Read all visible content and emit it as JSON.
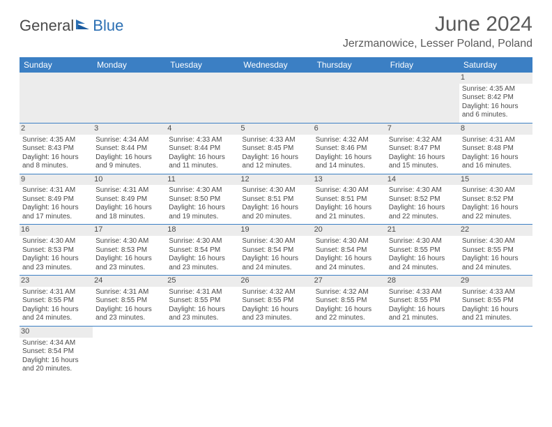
{
  "logo": {
    "text1": "General",
    "text2": "Blue",
    "color1": "#4a4a4a",
    "color2": "#2b6fb3"
  },
  "title": "June 2024",
  "location": "Jerzmanowice, Lesser Poland, Poland",
  "header_bg": "#3b7fc4",
  "daynum_bg": "#ececec",
  "columns": [
    "Sunday",
    "Monday",
    "Tuesday",
    "Wednesday",
    "Thursday",
    "Friday",
    "Saturday"
  ],
  "weeks": [
    [
      null,
      null,
      null,
      null,
      null,
      null,
      {
        "n": "1",
        "sr": "4:35 AM",
        "ss": "8:42 PM",
        "dl": "16 hours and 6 minutes."
      }
    ],
    [
      {
        "n": "2",
        "sr": "4:35 AM",
        "ss": "8:43 PM",
        "dl": "16 hours and 8 minutes."
      },
      {
        "n": "3",
        "sr": "4:34 AM",
        "ss": "8:44 PM",
        "dl": "16 hours and 9 minutes."
      },
      {
        "n": "4",
        "sr": "4:33 AM",
        "ss": "8:44 PM",
        "dl": "16 hours and 11 minutes."
      },
      {
        "n": "5",
        "sr": "4:33 AM",
        "ss": "8:45 PM",
        "dl": "16 hours and 12 minutes."
      },
      {
        "n": "6",
        "sr": "4:32 AM",
        "ss": "8:46 PM",
        "dl": "16 hours and 14 minutes."
      },
      {
        "n": "7",
        "sr": "4:32 AM",
        "ss": "8:47 PM",
        "dl": "16 hours and 15 minutes."
      },
      {
        "n": "8",
        "sr": "4:31 AM",
        "ss": "8:48 PM",
        "dl": "16 hours and 16 minutes."
      }
    ],
    [
      {
        "n": "9",
        "sr": "4:31 AM",
        "ss": "8:49 PM",
        "dl": "16 hours and 17 minutes."
      },
      {
        "n": "10",
        "sr": "4:31 AM",
        "ss": "8:49 PM",
        "dl": "16 hours and 18 minutes."
      },
      {
        "n": "11",
        "sr": "4:30 AM",
        "ss": "8:50 PM",
        "dl": "16 hours and 19 minutes."
      },
      {
        "n": "12",
        "sr": "4:30 AM",
        "ss": "8:51 PM",
        "dl": "16 hours and 20 minutes."
      },
      {
        "n": "13",
        "sr": "4:30 AM",
        "ss": "8:51 PM",
        "dl": "16 hours and 21 minutes."
      },
      {
        "n": "14",
        "sr": "4:30 AM",
        "ss": "8:52 PM",
        "dl": "16 hours and 22 minutes."
      },
      {
        "n": "15",
        "sr": "4:30 AM",
        "ss": "8:52 PM",
        "dl": "16 hours and 22 minutes."
      }
    ],
    [
      {
        "n": "16",
        "sr": "4:30 AM",
        "ss": "8:53 PM",
        "dl": "16 hours and 23 minutes."
      },
      {
        "n": "17",
        "sr": "4:30 AM",
        "ss": "8:53 PM",
        "dl": "16 hours and 23 minutes."
      },
      {
        "n": "18",
        "sr": "4:30 AM",
        "ss": "8:54 PM",
        "dl": "16 hours and 23 minutes."
      },
      {
        "n": "19",
        "sr": "4:30 AM",
        "ss": "8:54 PM",
        "dl": "16 hours and 24 minutes."
      },
      {
        "n": "20",
        "sr": "4:30 AM",
        "ss": "8:54 PM",
        "dl": "16 hours and 24 minutes."
      },
      {
        "n": "21",
        "sr": "4:30 AM",
        "ss": "8:55 PM",
        "dl": "16 hours and 24 minutes."
      },
      {
        "n": "22",
        "sr": "4:30 AM",
        "ss": "8:55 PM",
        "dl": "16 hours and 24 minutes."
      }
    ],
    [
      {
        "n": "23",
        "sr": "4:31 AM",
        "ss": "8:55 PM",
        "dl": "16 hours and 24 minutes."
      },
      {
        "n": "24",
        "sr": "4:31 AM",
        "ss": "8:55 PM",
        "dl": "16 hours and 23 minutes."
      },
      {
        "n": "25",
        "sr": "4:31 AM",
        "ss": "8:55 PM",
        "dl": "16 hours and 23 minutes."
      },
      {
        "n": "26",
        "sr": "4:32 AM",
        "ss": "8:55 PM",
        "dl": "16 hours and 23 minutes."
      },
      {
        "n": "27",
        "sr": "4:32 AM",
        "ss": "8:55 PM",
        "dl": "16 hours and 22 minutes."
      },
      {
        "n": "28",
        "sr": "4:33 AM",
        "ss": "8:55 PM",
        "dl": "16 hours and 21 minutes."
      },
      {
        "n": "29",
        "sr": "4:33 AM",
        "ss": "8:55 PM",
        "dl": "16 hours and 21 minutes."
      }
    ],
    [
      {
        "n": "30",
        "sr": "4:34 AM",
        "ss": "8:54 PM",
        "dl": "16 hours and 20 minutes."
      },
      null,
      null,
      null,
      null,
      null,
      null
    ]
  ],
  "labels": {
    "sunrise": "Sunrise: ",
    "sunset": "Sunset: ",
    "daylight": "Daylight: "
  }
}
